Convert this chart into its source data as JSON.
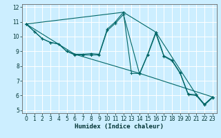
{
  "title": "",
  "xlabel": "Humidex (Indice chaleur)",
  "bg_color": "#cceeff",
  "grid_color": "#ffffff",
  "line_color": "#006666",
  "xlim": [
    -0.5,
    23.5
  ],
  "ylim": [
    4.8,
    12.2
  ],
  "xticks": [
    0,
    1,
    2,
    3,
    4,
    5,
    6,
    7,
    8,
    9,
    10,
    11,
    12,
    13,
    14,
    15,
    16,
    17,
    18,
    19,
    20,
    21,
    22,
    23
  ],
  "yticks": [
    5,
    6,
    7,
    8,
    9,
    10,
    11,
    12
  ],
  "series": [
    {
      "x": [
        0,
        1,
        2,
        3,
        4,
        5,
        6,
        7,
        8,
        9,
        10,
        11,
        12,
        13,
        14,
        15,
        16,
        17,
        18,
        19,
        20,
        21,
        22,
        23
      ],
      "y": [
        10.85,
        10.35,
        9.85,
        9.6,
        9.5,
        9.0,
        8.8,
        8.8,
        8.85,
        8.8,
        10.5,
        11.0,
        11.65,
        7.5,
        7.5,
        8.8,
        10.3,
        8.7,
        8.4,
        7.55,
        6.1,
        6.05,
        5.4,
        5.9
      ]
    },
    {
      "x": [
        0,
        1,
        2,
        3,
        4,
        5,
        6,
        7,
        8,
        9,
        10,
        11,
        12,
        14,
        15,
        16,
        17,
        18,
        19,
        20,
        21,
        22,
        23
      ],
      "y": [
        10.85,
        10.35,
        9.85,
        9.6,
        9.5,
        9.0,
        8.75,
        8.75,
        8.75,
        8.75,
        10.4,
        10.9,
        11.5,
        7.45,
        8.75,
        10.2,
        8.65,
        8.35,
        7.5,
        6.05,
        6.0,
        5.35,
        5.85
      ]
    },
    {
      "x": [
        0,
        6,
        14,
        23
      ],
      "y": [
        10.85,
        8.8,
        7.5,
        5.9
      ]
    },
    {
      "x": [
        0,
        12,
        16,
        21,
        22,
        23
      ],
      "y": [
        10.85,
        11.65,
        10.3,
        6.05,
        5.4,
        5.9
      ]
    }
  ]
}
